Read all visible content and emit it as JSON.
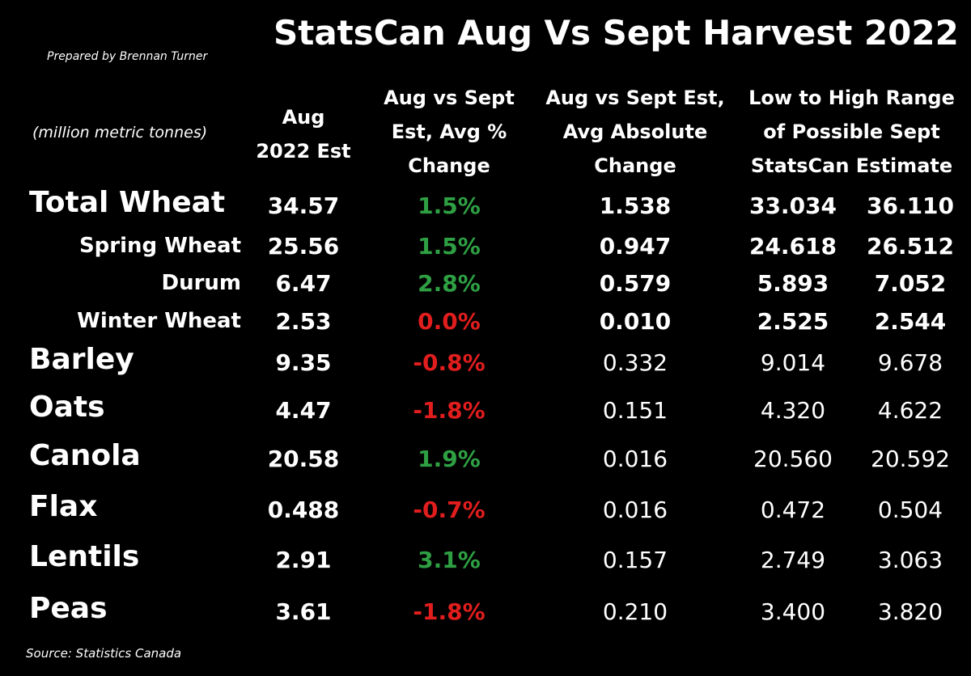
{
  "title": "StatsCan Aug Vs Sept Harvest 2022",
  "prepared_by": "Prepared by Brennan Turner",
  "units_label": "(million metric tonnes)",
  "source": "Source: Statistics Canada",
  "colors": {
    "background": "#000000",
    "text": "#ffffff",
    "positive": "#2ea043",
    "negative": "#e11d1d"
  },
  "chart_data": {
    "type": "table",
    "columns": [
      "Aug\n2022 Est",
      "Aug vs Sept\nEst, Avg %\nChange",
      "Aug vs Sept Est,\nAvg Absolute\nChange",
      "Low to High Range\nof Possible Sept\nStatsCan Estimate"
    ],
    "rows": [
      {
        "label": "Total Wheat",
        "style": "major",
        "bold": true,
        "aug": "34.57",
        "pct": "1.5%",
        "pct_sign": "positive",
        "abs": "1.538",
        "low": "33.034",
        "high": "36.110"
      },
      {
        "label": "Spring Wheat",
        "style": "sub",
        "bold": true,
        "aug": "25.56",
        "pct": "1.5%",
        "pct_sign": "positive",
        "abs": "0.947",
        "low": "24.618",
        "high": "26.512"
      },
      {
        "label": "Durum",
        "style": "sub",
        "bold": true,
        "aug": "6.47",
        "pct": "2.8%",
        "pct_sign": "positive",
        "abs": "0.579",
        "low": "5.893",
        "high": "7.052"
      },
      {
        "label": "Winter Wheat",
        "style": "sub",
        "bold": true,
        "aug": "2.53",
        "pct": "0.0%",
        "pct_sign": "negative",
        "abs": "0.010",
        "low": "2.525",
        "high": "2.544"
      },
      {
        "label": "Barley",
        "style": "major",
        "bold": false,
        "aug": "9.35",
        "pct": "-0.8%",
        "pct_sign": "negative",
        "abs": "0.332",
        "low": "9.014",
        "high": "9.678"
      },
      {
        "label": "Oats",
        "style": "major",
        "bold": false,
        "aug": "4.47",
        "pct": "-1.8%",
        "pct_sign": "negative",
        "abs": "0.151",
        "low": "4.320",
        "high": "4.622"
      },
      {
        "label": "Canola",
        "style": "major",
        "bold": false,
        "aug": "20.58",
        "pct": "1.9%",
        "pct_sign": "positive",
        "abs": "0.016",
        "low": "20.560",
        "high": "20.592"
      },
      {
        "label": "Flax",
        "style": "major",
        "bold": false,
        "aug": "0.488",
        "pct": "-0.7%",
        "pct_sign": "negative",
        "abs": "0.016",
        "low": "0.472",
        "high": "0.504"
      },
      {
        "label": "Lentils",
        "style": "major",
        "bold": false,
        "aug": "2.91",
        "pct": "3.1%",
        "pct_sign": "positive",
        "abs": "0.157",
        "low": "2.749",
        "high": "3.063"
      },
      {
        "label": "Peas",
        "style": "major",
        "bold": false,
        "aug": "3.61",
        "pct": "-1.8%",
        "pct_sign": "negative",
        "abs": "0.210",
        "low": "3.400",
        "high": "3.820"
      }
    ]
  }
}
